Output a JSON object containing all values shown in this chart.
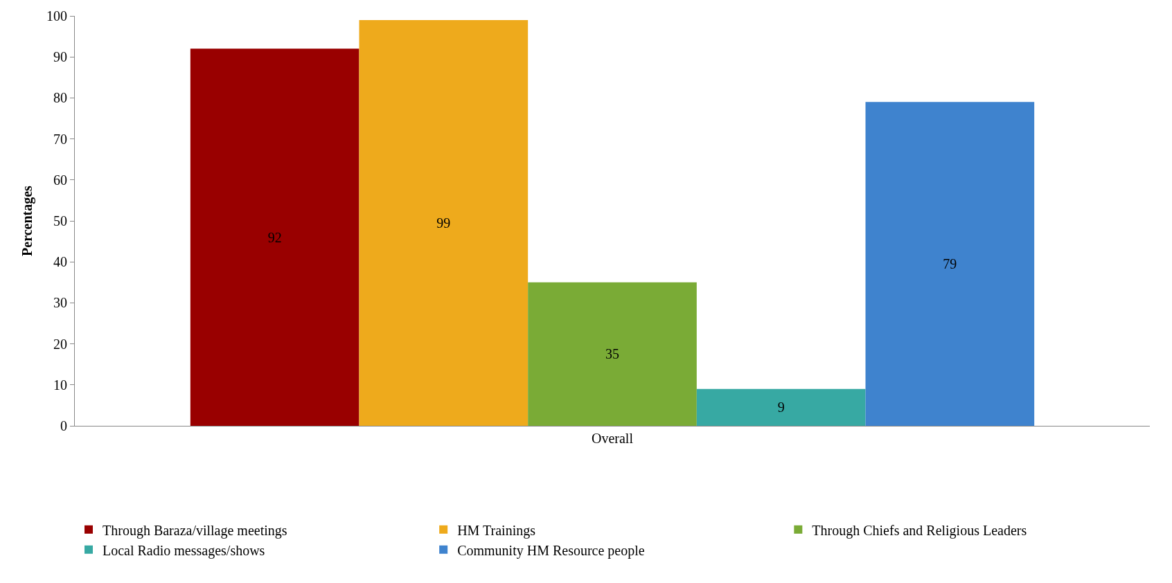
{
  "chart_data": {
    "type": "bar",
    "categories": [
      "Overall"
    ],
    "ylabel": "Percentages",
    "ylim": [
      0,
      100
    ],
    "yticks": [
      0,
      10,
      20,
      30,
      40,
      50,
      60,
      70,
      80,
      90,
      100
    ],
    "legend": "bottom",
    "data_labels": true,
    "series": [
      {
        "name": "Through Baraza/village meetings",
        "color": "#990000",
        "values": [
          92
        ]
      },
      {
        "name": "HM Trainings",
        "color": "#eeaa1c",
        "values": [
          99
        ]
      },
      {
        "name": "Through Chiefs and Religious Leaders",
        "color": "#7aab36",
        "values": [
          35
        ]
      },
      {
        "name": "Local Radio messages/shows",
        "color": "#37a9a3",
        "values": [
          9
        ]
      },
      {
        "name": "Community HM Resource people",
        "color": "#3f83ce",
        "values": [
          79
        ]
      }
    ]
  }
}
